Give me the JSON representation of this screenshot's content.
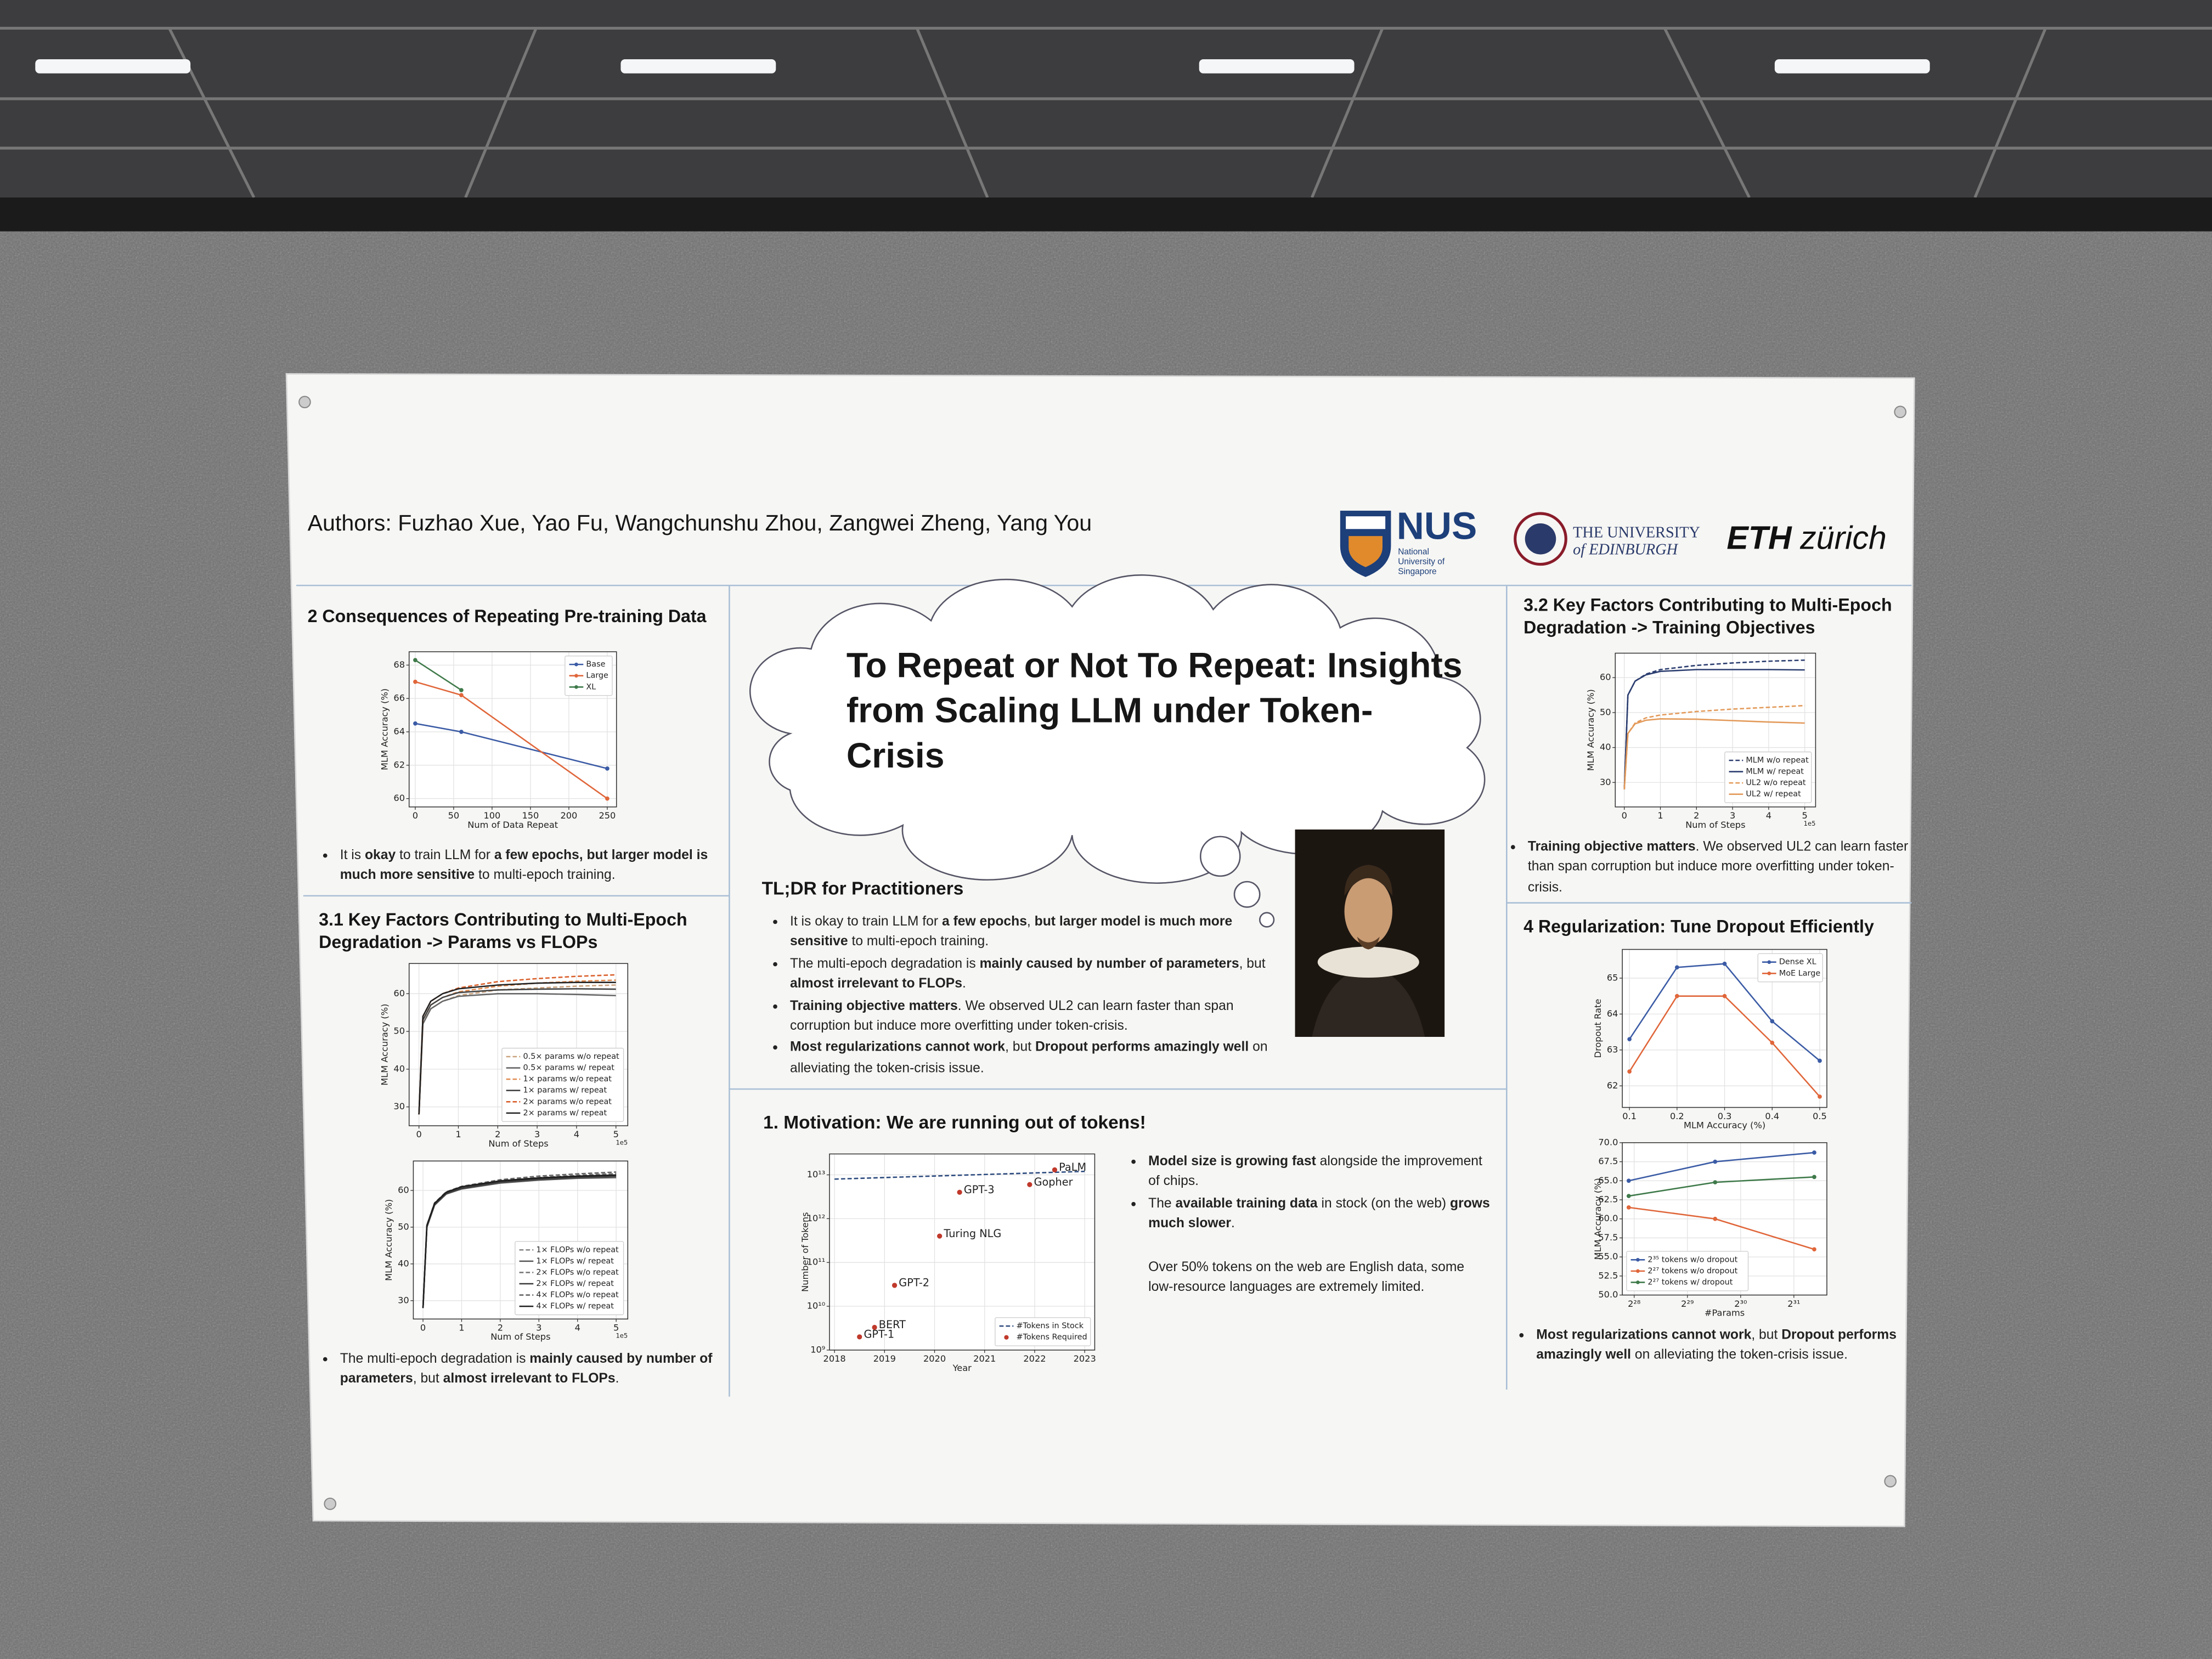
{
  "header": {
    "authors": "Authors: Fuzhao Xue, Yao Fu, Wangchunshu Zhou, Zangwei Zheng, Yang You",
    "logos": {
      "nus": "NUS",
      "nus_full": "National University of Singapore",
      "edinburgh_1": "THE UNIVERSITY",
      "edinburgh_2": "of EDINBURGH",
      "eth": "ETH",
      "eth_2": "zürich"
    }
  },
  "title": "To Repeat or Not To Repeat: Insights from Scaling LLM under Token-Crisis",
  "consequences": {
    "heading": "2 Consequences of Repeating Pre-training Data",
    "charts": [
      {
        "type": "line",
        "xlabel": "Num of Data Repeat",
        "ylabel": "MLM Accuracy (%)",
        "xlim": [
          -8,
          262
        ],
        "ylim": [
          59.5,
          68.8
        ],
        "xticks": [
          0,
          50,
          100,
          150,
          200,
          250
        ],
        "yticks": [
          60,
          62,
          64,
          66,
          68
        ],
        "grid": true,
        "markers": true,
        "legend": "upper right",
        "series": [
          {
            "name": "Base",
            "color": "#3b5ba5",
            "x": [
              0,
              60,
              250
            ],
            "values": [
              64.5,
              64.0,
              61.8
            ]
          },
          {
            "name": "Large",
            "color": "#e0663a",
            "x": [
              0,
              60,
              250
            ],
            "values": [
              67.0,
              66.2,
              60.0
            ]
          },
          {
            "name": "XL",
            "color": "#3f7a4a",
            "x": [
              0,
              60
            ],
            "values": [
              68.3,
              66.5
            ]
          }
        ]
      }
    ],
    "bullets": [
      [
        {
          "text": "It is "
        },
        {
          "text": "okay",
          "bold": true
        },
        {
          "text": " to train LLM for "
        },
        {
          "text": "a few epochs, but larger model is much more sensitive",
          "bold": true
        },
        {
          "text": " to multi-epoch training."
        }
      ]
    ]
  },
  "params_flops": {
    "heading": "3.1 Key Factors Contributing to Multi-Epoch Degradation -> Params vs FLOPs",
    "charts": [
      {
        "type": "line",
        "xlabel": "Num of Steps",
        "ylabel": "MLM Accuracy (%)",
        "x_offset_label": "1e5",
        "xlim": [
          -0.25,
          5.3
        ],
        "ylim": [
          25,
          68
        ],
        "xticks": [
          0,
          1,
          2,
          3,
          4,
          5
        ],
        "yticks": [
          30,
          40,
          50,
          60
        ],
        "grid": true,
        "legend": "lower right",
        "x": [
          0,
          0.1,
          0.3,
          0.6,
          1,
          2,
          3,
          4,
          5
        ],
        "series": [
          {
            "name": "0.5× params w/o repeat",
            "color": "#c9a27e",
            "dash": true,
            "values": [
              28,
              52,
              56,
              58,
              59.5,
              61,
              61.5,
              62,
              62.3
            ]
          },
          {
            "name": "0.5× params w/ repeat",
            "color": "#666666",
            "values": [
              28,
              52,
              56,
              58,
              59.3,
              60,
              60,
              59.8,
              59.5
            ]
          },
          {
            "name": "1× params w/o repeat",
            "color": "#e08a4f",
            "dash": true,
            "values": [
              28,
              53,
              57,
              59,
              60.5,
              62,
              62.8,
              63.3,
              63.6
            ]
          },
          {
            "name": "1× params w/ repeat",
            "color": "#444444",
            "values": [
              28,
              53,
              57,
              59,
              60.3,
              61,
              61.2,
              61.3,
              61.2
            ]
          },
          {
            "name": "2× params w/o repeat",
            "color": "#d95f2b",
            "dash": true,
            "values": [
              28,
              54,
              58,
              60,
              61.5,
              63.2,
              64,
              64.6,
              65
            ]
          },
          {
            "name": "2× params w/ repeat",
            "color": "#222222",
            "values": [
              28,
              54,
              58,
              60,
              61.3,
              62.3,
              62.8,
              63,
              63
            ]
          }
        ]
      },
      {
        "type": "line",
        "xlabel": "Num of Steps",
        "ylabel": "MLM Accuracy (%)",
        "x_offset_label": "1e5",
        "xlim": [
          -0.25,
          5.3
        ],
        "ylim": [
          25,
          68
        ],
        "xticks": [
          0,
          1,
          2,
          3,
          4,
          5
        ],
        "yticks": [
          30,
          40,
          50,
          60
        ],
        "grid": true,
        "legend": "lower right",
        "x": [
          0,
          0.1,
          0.3,
          0.6,
          1,
          2,
          3,
          4,
          5
        ],
        "series": [
          {
            "name": "1× FLOPs w/o repeat",
            "color": "#888888",
            "dash": true,
            "values": [
              28,
              50,
              56,
              59,
              60.5,
              62.3,
              63.2,
              63.8,
              64.2
            ]
          },
          {
            "name": "1× FLOPs w/ repeat",
            "color": "#555555",
            "values": [
              28,
              50,
              56,
              59,
              60.4,
              62,
              62.8,
              63.3,
              63.5
            ]
          },
          {
            "name": "2× FLOPs w/o repeat",
            "color": "#777777",
            "dash": true,
            "values": [
              28,
              50,
              56.3,
              59.3,
              60.8,
              62.6,
              63.5,
              64.1,
              64.6
            ]
          },
          {
            "name": "2× FLOPs w/ repeat",
            "color": "#3a3a3a",
            "values": [
              28,
              50,
              56.2,
              59.2,
              60.6,
              62.3,
              63.1,
              63.6,
              63.9
            ]
          },
          {
            "name": "4× FLOPs w/o repeat",
            "color": "#666666",
            "dash": true,
            "values": [
              28,
              50.5,
              56.6,
              59.6,
              61.1,
              62.9,
              63.9,
              64.5,
              65
            ]
          },
          {
            "name": "4× FLOPs w/ repeat",
            "color": "#1e1e1e",
            "values": [
              28,
              50.5,
              56.5,
              59.5,
              61,
              62.6,
              63.4,
              63.9,
              64.2
            ]
          }
        ]
      }
    ],
    "bullets": [
      [
        {
          "text": "The multi-epoch degradation is "
        },
        {
          "text": "mainly caused by number of parameters",
          "bold": true
        },
        {
          "text": ", but "
        },
        {
          "text": "almost irrelevant to FLOPs",
          "bold": true
        },
        {
          "text": "."
        }
      ]
    ]
  },
  "tldr": {
    "heading": "TL;DR for Practitioners",
    "bullets": [
      [
        {
          "text": "It is okay to train LLM for "
        },
        {
          "text": "a few epochs",
          "bold": true
        },
        {
          "text": ", "
        },
        {
          "text": "but larger model is much more sensitive",
          "bold": true
        },
        {
          "text": " to multi-epoch training."
        }
      ],
      [
        {
          "text": "The multi-epoch degradation is "
        },
        {
          "text": "mainly caused by number of parameters",
          "bold": true
        },
        {
          "text": ", but "
        },
        {
          "text": "almost irrelevant to FLOPs",
          "bold": true
        },
        {
          "text": "."
        }
      ],
      [
        {
          "text": "Training objective matters",
          "bold": true
        },
        {
          "text": ". We observed UL2 can learn faster than span corruption but induce more overfitting under token-crisis."
        }
      ],
      [
        {
          "text": "Most regularizations cannot work",
          "bold": true
        },
        {
          "text": ", but "
        },
        {
          "text": "Dropout performs amazingly well",
          "bold": true
        },
        {
          "text": " on alleviating the token-crisis issue."
        }
      ]
    ]
  },
  "motivation": {
    "heading": "1. Motivation: We are running out of tokens!",
    "charts": [
      {
        "type": "scatter",
        "xlabel": "Year",
        "ylabel": "Number of Tokens",
        "xlim": [
          2017.9,
          2023.2
        ],
        "ylim": [
          1000000000.0,
          30000000000000.0
        ],
        "ylog": true,
        "xticks": [
          2018,
          2019,
          2020,
          2021,
          2022,
          2023
        ],
        "yticks": [
          {
            "value": 1000000000.0,
            "label": "10⁹"
          },
          {
            "value": 10000000000.0,
            "label": "10¹⁰"
          },
          {
            "value": 100000000000.0,
            "label": "10¹¹"
          },
          {
            "value": 1000000000000.0,
            "label": "10¹²"
          },
          {
            "value": 10000000000000.0,
            "label": "10¹³"
          }
        ],
        "grid": true,
        "legend": "lower right",
        "series": [
          {
            "name": "#Tokens in Stock",
            "type": "line",
            "dash": true,
            "color": "#2c4a7e",
            "x": [
              2018,
              2023
            ],
            "values": [
              8000000000000.0,
              12000000000000.0
            ]
          },
          {
            "name": "#Tokens Required",
            "type": "scatter",
            "color": "#c0392b",
            "x": [
              2018.5,
              2018.8,
              2019.2,
              2020.1,
              2020.5,
              2021.9,
              2022.4
            ],
            "values": [
              2000000000.0,
              3300000000.0,
              30000000000.0,
              400000000000.0,
              4000000000000.0,
              6000000000000.0,
              13000000000000.0
            ],
            "point_labels": [
              "GPT-1",
              "BERT",
              "GPT-2",
              "Turing NLG",
              "GPT-3",
              "Gopher",
              "PaLM"
            ]
          }
        ]
      }
    ],
    "bullets": [
      [
        {
          "text": "Model size is growing fast",
          "bold": true
        },
        {
          "text": " alongside the improvement of chips."
        }
      ],
      [
        {
          "text": "The "
        },
        {
          "text": "available training data",
          "bold": true
        },
        {
          "text": " in stock (on the web) "
        },
        {
          "text": "grows much slower",
          "bold": true
        },
        {
          "text": "."
        }
      ]
    ],
    "note": "Over 50% tokens on the web are English data, some low-resource languages are extremely limited."
  },
  "objectives": {
    "heading": "3.2 Key Factors Contributing to Multi-Epoch Degradation -> Training Objectives",
    "charts": [
      {
        "type": "line",
        "xlabel": "Num of Steps",
        "ylabel": "MLM Accuracy (%)",
        "x_offset_label": "1e5",
        "xlim": [
          -0.25,
          5.3
        ],
        "ylim": [
          23,
          67
        ],
        "xticks": [
          0,
          1,
          2,
          3,
          4,
          5
        ],
        "yticks": [
          30,
          40,
          50,
          60
        ],
        "grid": true,
        "legend": "lower right",
        "x": [
          0,
          0.1,
          0.3,
          0.6,
          1,
          2,
          3,
          4,
          5
        ],
        "series": [
          {
            "name": "MLM w/o repeat",
            "color": "#2c3e70",
            "dash": true,
            "values": [
              28,
              55,
              59,
              61,
              62.3,
              63.5,
              64.2,
              64.7,
              65
            ]
          },
          {
            "name": "MLM w/ repeat",
            "color": "#2c3e70",
            "values": [
              28,
              55,
              59,
              60.8,
              61.8,
              62.3,
              62.3,
              62.3,
              62.2
            ]
          },
          {
            "name": "UL2 w/o repeat",
            "color": "#e39a5a",
            "dash": true,
            "values": [
              28,
              44,
              47,
              48.5,
              49.3,
              50.3,
              51,
              51.5,
              52
            ]
          },
          {
            "name": "UL2 w/ repeat",
            "color": "#e39a5a",
            "values": [
              28,
              44,
              46.8,
              47.8,
              48.2,
              48.1,
              47.7,
              47.3,
              47
            ]
          }
        ]
      }
    ],
    "bullets": [
      [
        {
          "text": "Training objective matters",
          "bold": true
        },
        {
          "text": ". We observed UL2 can learn faster than span corruption but induce more overfitting under token-crisis."
        }
      ]
    ]
  },
  "regularization": {
    "heading": "4 Regularization: Tune Dropout Efficiently",
    "charts": [
      {
        "type": "line",
        "xlabel": "MLM Accuracy (%)",
        "ylabel": "Dropout Rate",
        "xlim": [
          0.085,
          0.515
        ],
        "ylim": [
          61.4,
          65.8
        ],
        "xticks": [
          0.1,
          0.2,
          0.3,
          0.4,
          0.5
        ],
        "yticks": [
          62,
          63,
          64,
          65
        ],
        "grid": true,
        "markers": true,
        "legend": "upper right",
        "x": [
          0.1,
          0.2,
          0.3,
          0.4,
          0.5
        ],
        "series": [
          {
            "name": "Dense XL",
            "color": "#3b5ba5",
            "values": [
              63.3,
              65.3,
              65.4,
              63.8,
              62.7
            ]
          },
          {
            "name": "MoE Large",
            "color": "#e0663a",
            "values": [
              62.4,
              64.5,
              64.5,
              63.2,
              61.7
            ]
          }
        ]
      },
      {
        "type": "line",
        "xlabel": "#Params",
        "ylabel": "MLM Accuracy (%)",
        "xlim": [
          230000000,
          3300000000
        ],
        "xlog": true,
        "ylim": [
          50,
          70
        ],
        "xticks": [
          {
            "value": 268435456,
            "label": "2²⁸"
          },
          {
            "value": 536870912,
            "label": "2²⁹"
          },
          {
            "value": 1073741824,
            "label": "2³⁰"
          },
          {
            "value": 2147483648,
            "label": "2³¹"
          }
        ],
        "yticks": [
          {
            "value": 50,
            "label": "50.0"
          },
          52.5,
          {
            "value": 55,
            "label": "55.0"
          },
          57.5,
          {
            "value": 60,
            "label": "60.0"
          },
          62.5,
          {
            "value": 65,
            "label": "65.0"
          },
          67.5,
          {
            "value": 70,
            "label": "70.0"
          }
        ],
        "grid": true,
        "markers": true,
        "legend": "lower left",
        "x": [
          250000000,
          770000000,
          2800000000
        ],
        "series": [
          {
            "name": "2³⁵ tokens w/o dropout",
            "color": "#3b5ba5",
            "values": [
              65.0,
              67.5,
              68.7
            ]
          },
          {
            "name": "2²⁷ tokens w/o dropout",
            "color": "#e0663a",
            "values": [
              61.5,
              60.0,
              56.0
            ]
          },
          {
            "name": "2²⁷ tokens w/ dropout",
            "color": "#3f7a4a",
            "values": [
              63.0,
              64.8,
              65.5
            ]
          }
        ]
      }
    ],
    "bullets": [
      [
        {
          "text": "Most regularizations cannot work",
          "bold": true
        },
        {
          "text": ", but "
        },
        {
          "text": "Dropout performs amazingly well",
          "bold": true
        },
        {
          "text": " on alleviating the token-crisis issue."
        }
      ]
    ]
  }
}
